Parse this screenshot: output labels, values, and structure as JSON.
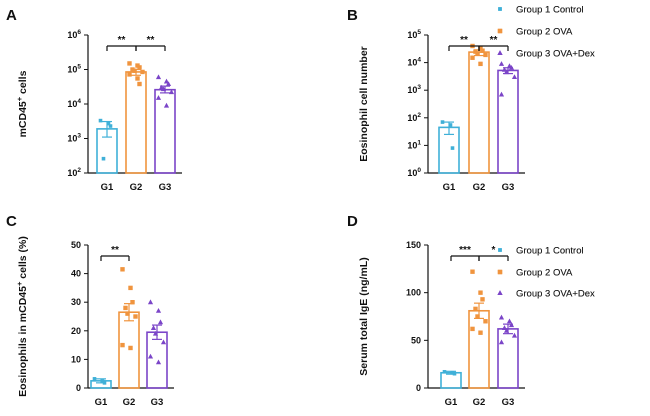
{
  "chart_data": [
    {
      "panel": "A",
      "type": "bar",
      "ylabel_main": "mCD45",
      "ylabel_sup": "+",
      "ylabel_tail": " cells",
      "yscale": "log",
      "ylim": [
        100,
        1000000
      ],
      "yticks": [
        {
          "value": 100,
          "base": "10",
          "exp": "2"
        },
        {
          "value": 1000,
          "base": "10",
          "exp": "3"
        },
        {
          "value": 10000,
          "base": "10",
          "exp": "4"
        },
        {
          "value": 100000,
          "base": "10",
          "exp": "5"
        },
        {
          "value": 1000000,
          "base": "10",
          "exp": "6"
        }
      ],
      "categories": [
        "G1",
        "G2",
        "G3"
      ],
      "series": [
        {
          "group": 0,
          "mean": 1900,
          "sem_low": 1100,
          "sem_high": 3100,
          "points": [
            3300,
            2700,
            2300,
            260
          ]
        },
        {
          "group": 1,
          "mean": 85000,
          "sem_low": 68000,
          "sem_high": 100000,
          "points": [
            150000,
            130000,
            115000,
            100000,
            92000,
            85000,
            72000,
            55000,
            38000
          ]
        },
        {
          "group": 2,
          "mean": 26000,
          "sem_low": 21000,
          "sem_high": 33000,
          "points": [
            60000,
            45000,
            38000,
            30000,
            27000,
            22000,
            15000,
            9000
          ]
        }
      ],
      "significance": [
        {
          "from": 0,
          "to": 1,
          "label": "**"
        },
        {
          "from": 1,
          "to": 2,
          "label": "**"
        }
      ],
      "legend": [
        "Group 1 Control",
        "Group 2 OVA",
        "Group 3 OVA+Dex"
      ]
    },
    {
      "panel": "B",
      "type": "bar",
      "ylabel_main": "Eosinophil cell number",
      "ylabel_sup": "",
      "ylabel_tail": "",
      "yscale": "log",
      "ylim": [
        1,
        100000
      ],
      "yticks": [
        {
          "value": 1,
          "base": "10",
          "exp": "0"
        },
        {
          "value": 10,
          "base": "10",
          "exp": "1"
        },
        {
          "value": 100,
          "base": "10",
          "exp": "2"
        },
        {
          "value": 1000,
          "base": "10",
          "exp": "3"
        },
        {
          "value": 10000,
          "base": "10",
          "exp": "4"
        },
        {
          "value": 100000,
          "base": "10",
          "exp": "5"
        }
      ],
      "categories": [
        "G1",
        "G2",
        "G3"
      ],
      "series": [
        {
          "group": 0,
          "mean": 45,
          "sem_low": 25,
          "sem_high": 70,
          "points": [
            70,
            55,
            8
          ]
        },
        {
          "group": 1,
          "mean": 24000,
          "sem_low": 18000,
          "sem_high": 29000,
          "points": [
            40000,
            32000,
            27000,
            25000,
            21000,
            19000,
            15000,
            9000
          ]
        },
        {
          "group": 2,
          "mean": 5200,
          "sem_low": 4000,
          "sem_high": 6500,
          "points": [
            9000,
            7500,
            6500,
            5500,
            4500,
            3000,
            700
          ]
        }
      ],
      "significance": [
        {
          "from": 0,
          "to": 1,
          "label": "**"
        },
        {
          "from": 1,
          "to": 2,
          "label": "**"
        }
      ],
      "legend": [
        "Group 1 Control",
        "Group 2 OVA",
        "Group 3 OVA+Dex"
      ]
    },
    {
      "panel": "C",
      "type": "bar",
      "ylabel_main": "Eosinophils in mCD45",
      "ylabel_sup": "+",
      "ylabel_tail": " cells (%)",
      "yscale": "linear",
      "ylim": [
        0,
        50
      ],
      "yticks": [
        {
          "value": 0,
          "label": "0"
        },
        {
          "value": 10,
          "label": "10"
        },
        {
          "value": 20,
          "label": "20"
        },
        {
          "value": 30,
          "label": "30"
        },
        {
          "value": 40,
          "label": "40"
        },
        {
          "value": 50,
          "label": "50"
        }
      ],
      "categories": [
        "G1",
        "G2",
        "G3"
      ],
      "series": [
        {
          "group": 0,
          "mean": 2.5,
          "sem_low": 1.8,
          "sem_high": 3.2,
          "points": [
            3.2,
            2.4,
            1.8
          ]
        },
        {
          "group": 1,
          "mean": 26.5,
          "sem_low": 23.5,
          "sem_high": 29.5,
          "points": [
            41.5,
            35,
            30,
            28,
            26,
            25,
            15,
            14
          ]
        },
        {
          "group": 2,
          "mean": 19.5,
          "sem_low": 17,
          "sem_high": 22,
          "points": [
            30,
            27,
            23,
            21,
            19,
            16,
            11,
            9
          ]
        }
      ],
      "significance": [
        {
          "from": 0,
          "to": 1,
          "label": "**"
        }
      ],
      "legend": [
        "Group 1 Control",
        "Group 2 OVA",
        "Group 3 OVA+Dex"
      ]
    },
    {
      "panel": "D",
      "type": "bar",
      "ylabel_main": "Serum total IgE (ng/mL)",
      "ylabel_sup": "",
      "ylabel_tail": "",
      "yscale": "linear",
      "ylim": [
        0,
        150
      ],
      "yticks": [
        {
          "value": 0,
          "label": "0"
        },
        {
          "value": 50,
          "label": "50"
        },
        {
          "value": 100,
          "label": "100"
        },
        {
          "value": 150,
          "label": "150"
        }
      ],
      "categories": [
        "G1",
        "G2",
        "G3"
      ],
      "series": [
        {
          "group": 0,
          "mean": 16,
          "sem_low": 14.5,
          "sem_high": 17.5,
          "points": [
            17,
            16,
            15
          ]
        },
        {
          "group": 1,
          "mean": 81,
          "sem_low": 73,
          "sem_high": 89,
          "points": [
            122,
            100,
            93,
            83,
            75,
            70,
            62,
            58
          ]
        },
        {
          "group": 2,
          "mean": 62,
          "sem_low": 57,
          "sem_high": 67,
          "points": [
            74,
            70,
            66,
            63,
            60,
            55,
            48
          ]
        }
      ],
      "significance": [
        {
          "from": 0,
          "to": 1,
          "label": "***"
        },
        {
          "from": 1,
          "to": 2,
          "label": "*"
        }
      ],
      "legend": [
        "Group 1 Control",
        "Group 2 OVA",
        "Group 3 OVA+Dex"
      ]
    }
  ],
  "colors": {
    "group1": "#3fb0d8",
    "group2": "#f0943e",
    "group3": "#7b45c8",
    "axis": "#111111"
  }
}
